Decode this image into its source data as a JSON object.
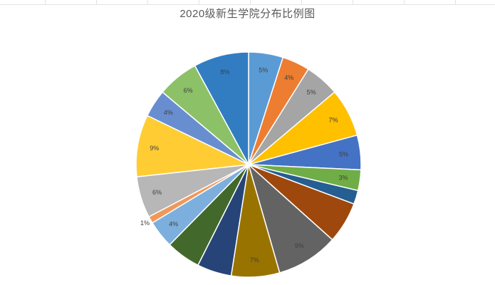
{
  "chart_data": {
    "type": "pie",
    "title": "2020级新生学院分布比例图",
    "slices": [
      {
        "label": "5%",
        "value": 5,
        "color": "#5B9BD5"
      },
      {
        "label": "4%",
        "value": 4,
        "color": "#ED7D31"
      },
      {
        "label": "5%",
        "value": 5,
        "color": "#A5A5A5"
      },
      {
        "label": "7%",
        "value": 7,
        "color": "#FFC000"
      },
      {
        "label": "5%",
        "value": 5,
        "color": "#4472C4"
      },
      {
        "label": "3%",
        "value": 3,
        "color": "#70AD47"
      },
      {
        "label": "",
        "value": 2,
        "color": "#255E91"
      },
      {
        "label": "",
        "value": 6,
        "color": "#9E480E"
      },
      {
        "label": "9%",
        "value": 9,
        "color": "#636363"
      },
      {
        "label": "7%",
        "value": 7,
        "color": "#997300"
      },
      {
        "label": "",
        "value": 5,
        "color": "#264478"
      },
      {
        "label": "",
        "value": 5,
        "color": "#43682B"
      },
      {
        "label": "4%",
        "value": 4,
        "color": "#7CAFDD"
      },
      {
        "label": "1%",
        "value": 1,
        "color": "#F1975A"
      },
      {
        "label": "6%",
        "value": 6,
        "color": "#B7B7B7"
      },
      {
        "label": "9%",
        "value": 9,
        "color": "#FFCD33"
      },
      {
        "label": "4%",
        "value": 4,
        "color": "#698ED0"
      },
      {
        "label": "6%",
        "value": 6,
        "color": "#8CC168"
      },
      {
        "label": "8%",
        "value": 8,
        "color": "#327DC2"
      }
    ]
  }
}
